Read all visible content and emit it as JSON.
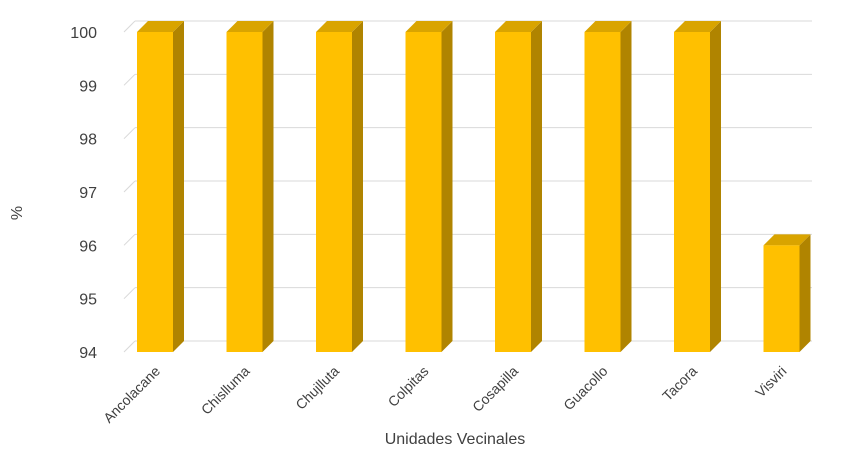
{
  "chart_data": {
    "type": "bar",
    "categories": [
      "Ancolacane",
      "Chislluma",
      "Chujlluta",
      "Colpitas",
      "Cosapilla",
      "Guacollo",
      "Tacora",
      "Visviri"
    ],
    "values": [
      100,
      100,
      100,
      100,
      100,
      100,
      100,
      96
    ],
    "xlabel": "Unidades Vecinales",
    "ylabel": "%",
    "ylim": [
      94,
      100
    ],
    "yticks": [
      94,
      95,
      96,
      97,
      98,
      99,
      100
    ],
    "grid": true,
    "legend": "none",
    "style": "3d-column"
  },
  "colors": {
    "bar_front": "#FFC000",
    "bar_side": "#B08400",
    "bar_top": "#D9A400",
    "grid": "#D9D9D9",
    "text": "#404040"
  }
}
